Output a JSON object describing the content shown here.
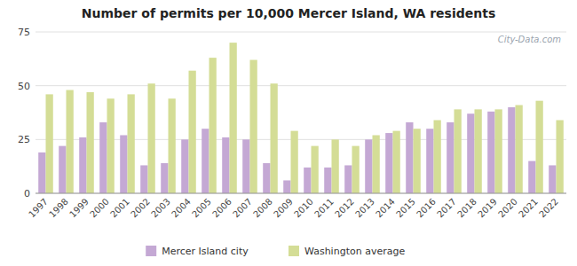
{
  "chart_data": {
    "type": "bar",
    "title": "Number of permits per 10,000 Mercer Island, WA residents",
    "categories": [
      "1997",
      "1998",
      "1999",
      "2000",
      "2001",
      "2002",
      "2003",
      "2004",
      "2005",
      "2006",
      "2007",
      "2008",
      "2009",
      "2010",
      "2011",
      "2012",
      "2013",
      "2014",
      "2015",
      "2016",
      "2017",
      "2018",
      "2019",
      "2020",
      "2021",
      "2022"
    ],
    "series": [
      {
        "name": "Mercer Island city",
        "color": "#c4a8d4",
        "values": [
          19,
          22,
          26,
          33,
          27,
          13,
          14,
          25,
          30,
          26,
          25,
          14,
          6,
          12,
          12,
          13,
          25,
          28,
          33,
          30,
          33,
          37,
          38,
          40,
          15,
          13
        ]
      },
      {
        "name": "Washington average",
        "color": "#d4dd96",
        "values": [
          46,
          48,
          47,
          44,
          46,
          51,
          44,
          57,
          63,
          70,
          62,
          51,
          29,
          22,
          25,
          22,
          27,
          29,
          30,
          34,
          39,
          39,
          39,
          41,
          43,
          34
        ]
      }
    ],
    "ylim": [
      0,
      75
    ],
    "yticks": [
      0,
      25,
      50,
      75
    ],
    "grid": true,
    "legend": "bottom",
    "annotations": [
      "City-Data.com"
    ]
  }
}
